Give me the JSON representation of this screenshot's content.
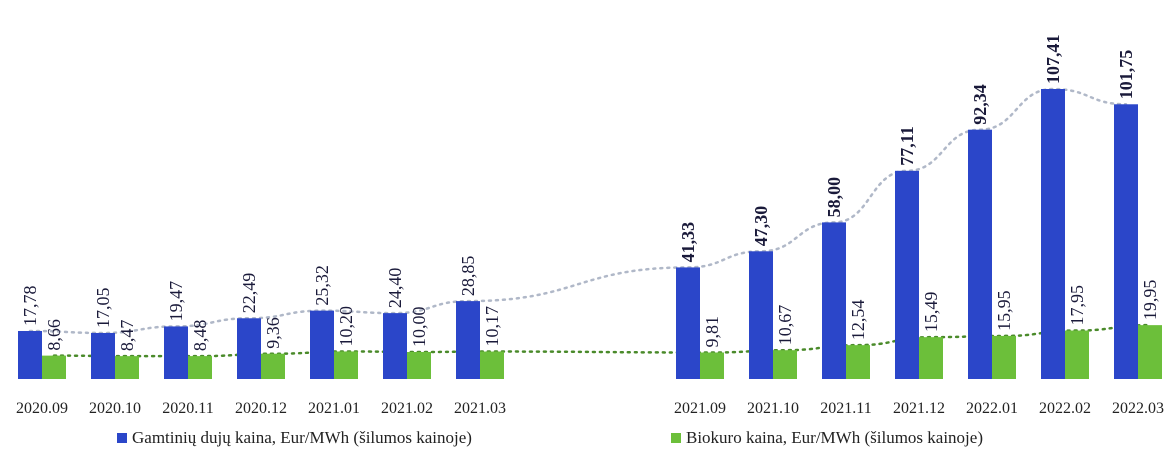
{
  "chart_data": {
    "type": "bar",
    "title": "",
    "categories": [
      "2020.09",
      "2020.10",
      "2020.11",
      "2020.12",
      "2021.01",
      "2021.02",
      "2021.03",
      "2021.09",
      "2021.10",
      "2021.11",
      "2021.12",
      "2022.01",
      "2022.02",
      "2022.03"
    ],
    "series": [
      {
        "name": "Gamtinių dujų kaina, Eur/MWh (šilumos kainoje)",
        "color": "#2b46c9",
        "values": [
          17.78,
          17.05,
          19.47,
          22.49,
          25.32,
          24.4,
          28.85,
          41.33,
          47.3,
          58.0,
          77.11,
          92.34,
          107.41,
          101.75
        ],
        "labels": [
          "17,78",
          "17,05",
          "19,47",
          "22,49",
          "25,32",
          "24,40",
          "28,85",
          "41,33",
          "47,30",
          "58,00",
          "77,11",
          "92,34",
          "107,41",
          "101,75"
        ]
      },
      {
        "name": "Biokuro kaina, Eur/MWh (šilumos kainoje)",
        "color": "#6cbf3a",
        "values": [
          8.66,
          8.47,
          8.48,
          9.36,
          10.2,
          10.0,
          10.17,
          9.81,
          10.67,
          12.54,
          15.49,
          15.95,
          17.95,
          19.95
        ],
        "labels": [
          "8,66",
          "8,47",
          "8,48",
          "9,36",
          "10,20",
          "10,00",
          "10,17",
          "9,81",
          "10,67",
          "12,54",
          "15,49",
          "15,95",
          "17,95",
          "19,95"
        ]
      }
    ],
    "trendlines": "dotted",
    "ylim": [
      0,
      115
    ],
    "legend_position": "bottom"
  }
}
